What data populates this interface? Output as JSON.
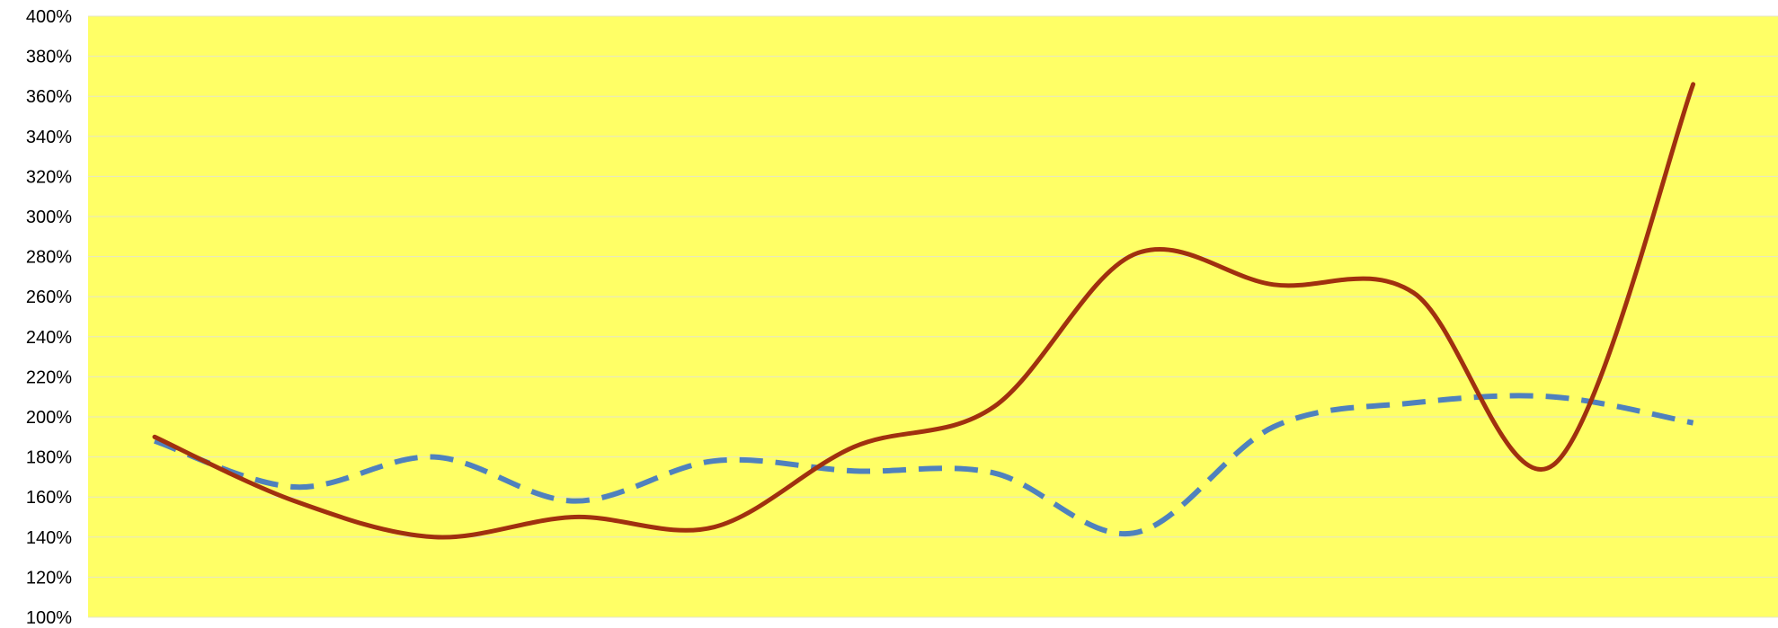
{
  "colors": {
    "plot_background": "#FFFF66",
    "gridline": "#E6E6C8",
    "series_solid": "#A0300F",
    "series_dashed": "#4F81BD",
    "tick_text": "#000000"
  },
  "chart_data": {
    "type": "line",
    "title": "",
    "xlabel": "",
    "ylabel": "",
    "grid": true,
    "legend": "none",
    "x": [
      1,
      2,
      3,
      4,
      5,
      6,
      7,
      8,
      9,
      10,
      11,
      12
    ],
    "ylim": [
      100,
      400
    ],
    "y_ticks": [
      "400%",
      "380%",
      "360%",
      "340%",
      "320%",
      "300%",
      "280%",
      "260%",
      "240%",
      "220%",
      "200%",
      "180%",
      "160%",
      "140%",
      "120%",
      "100%"
    ],
    "series": [
      {
        "style": "solid",
        "color": "#A0300F",
        "values": [
          190,
          158,
          140,
          150,
          145,
          185,
          205,
          281,
          266,
          262,
          176,
          366
        ]
      },
      {
        "style": "dashed",
        "color": "#4F81BD",
        "values": [
          188,
          165,
          180,
          158,
          178,
          173,
          172,
          142,
          195,
          207,
          210,
          197
        ]
      }
    ]
  }
}
